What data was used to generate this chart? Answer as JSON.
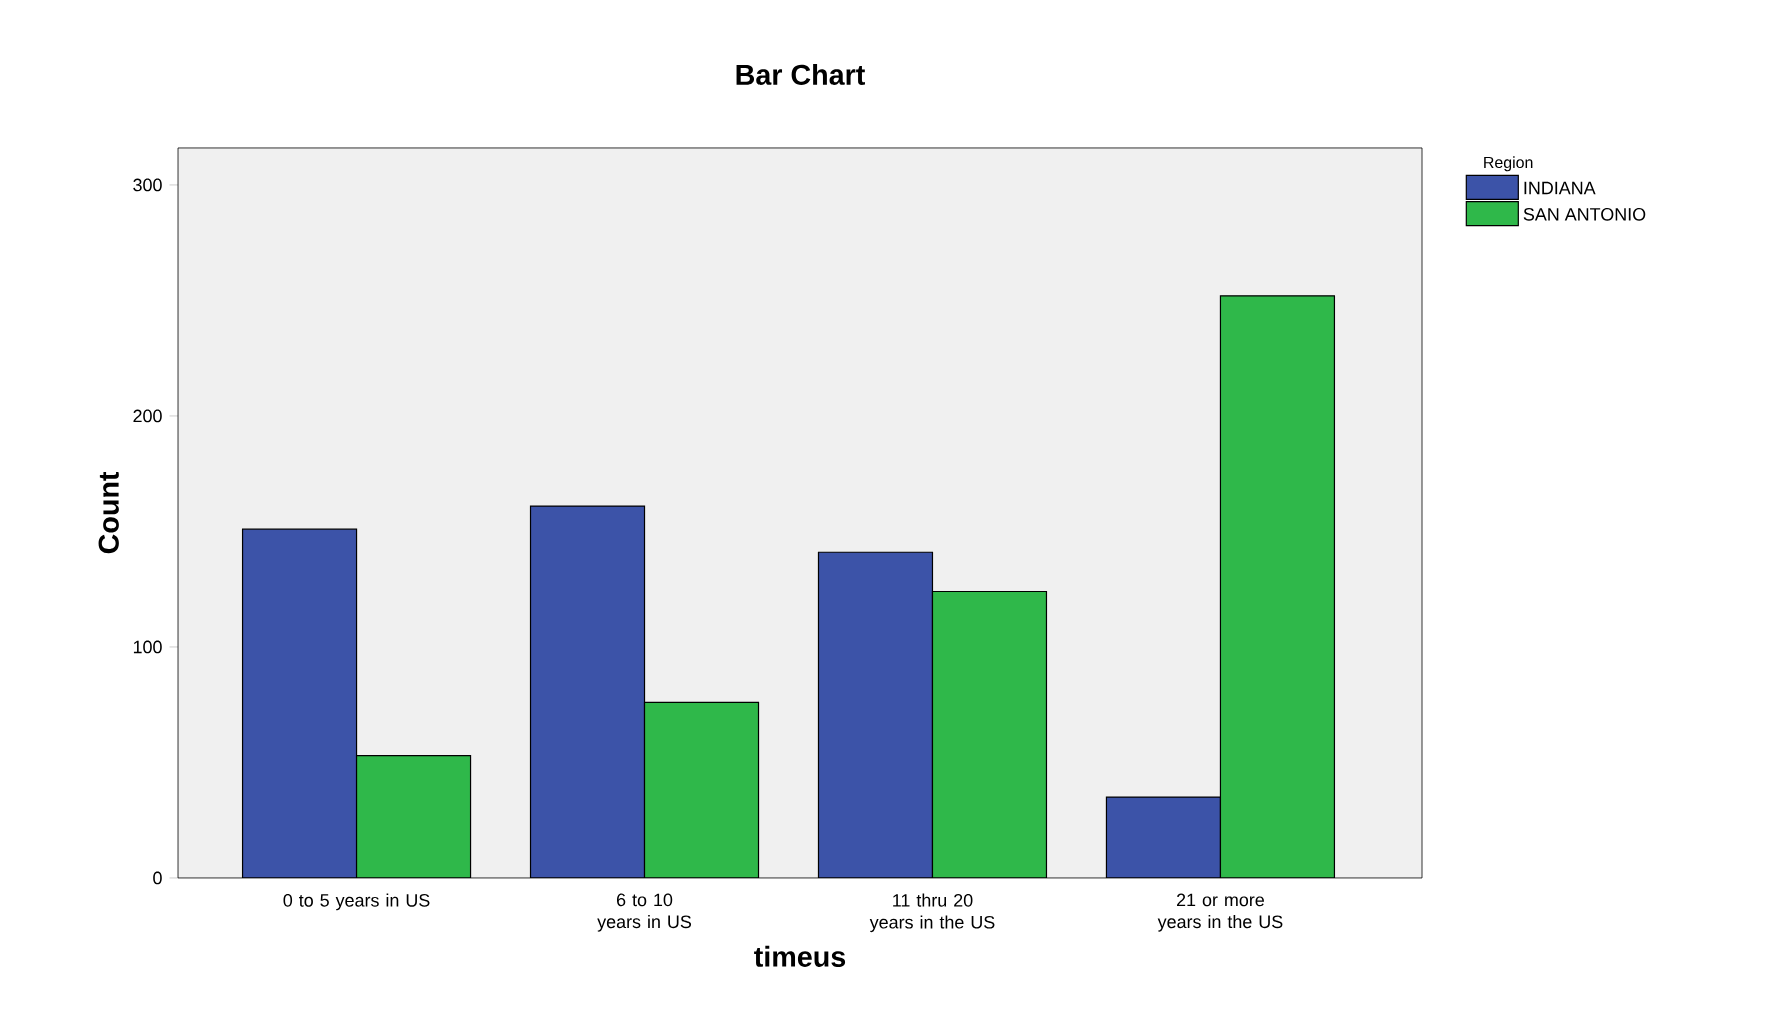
{
  "chart_data": {
    "type": "bar",
    "title": "Bar Chart",
    "xlabel": "timeus",
    "ylabel": "Count",
    "legend_title": "Region",
    "categories": [
      "0 to 5 years in US",
      "6 to 10 years in US",
      "11 thru 20 years in the US",
      "21 or more years in the US"
    ],
    "series": [
      {
        "name": "INDIANA",
        "color": "#3c53a8",
        "values": [
          151,
          161,
          141,
          35
        ]
      },
      {
        "name": "SAN ANTONIO",
        "color": "#2fb84a",
        "values": [
          53,
          76,
          124,
          252
        ]
      }
    ],
    "ylim": [
      0,
      316
    ],
    "yticks": [
      0,
      100,
      200,
      300
    ],
    "legend": "right",
    "grid": false
  }
}
